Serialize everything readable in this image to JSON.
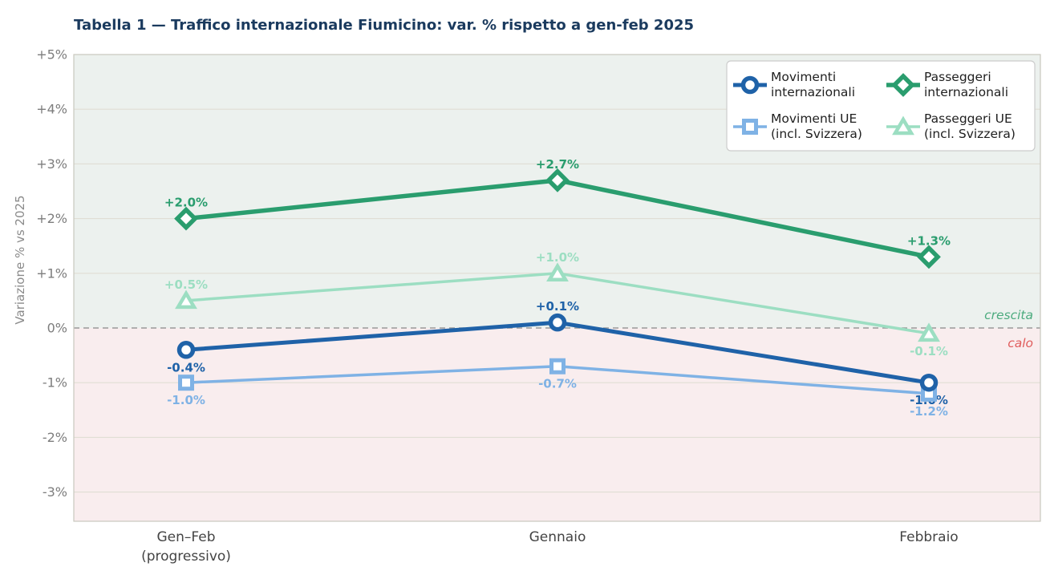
{
  "chart_data": {
    "type": "line",
    "title": "Tabella 1 — Traffico internazionale Fiumicino: var. % rispetto a gen-feb 2025",
    "ylabel": "Variazione % vs 2025",
    "categories": [
      [
        "Gen–Feb",
        "(progressivo)"
      ],
      [
        "Gennaio"
      ],
      [
        "Febbraio"
      ]
    ],
    "y_ticks": [
      {
        "value": 5,
        "label": "+5%"
      },
      {
        "value": 4,
        "label": "+4%"
      },
      {
        "value": 3,
        "label": "+3%"
      },
      {
        "value": 2,
        "label": "+2%"
      },
      {
        "value": 1,
        "label": "+1%"
      },
      {
        "value": 0,
        "label": "0%"
      },
      {
        "value": -1,
        "label": "-1%"
      },
      {
        "value": -2,
        "label": "-2%"
      },
      {
        "value": -3,
        "label": "-3%"
      }
    ],
    "ylim": [
      -3.5,
      5
    ],
    "series": [
      {
        "name": "Movimenti internazionali",
        "legend_label": [
          "Movimenti",
          "internazionali"
        ],
        "color": "#1f62a8",
        "marker": "circle",
        "line_width": 5,
        "values": [
          -0.4,
          0.1,
          -1.0
        ],
        "point_labels": [
          "-0.4%",
          "+0.1%",
          "-1.0%"
        ],
        "label_side": [
          "below",
          "above",
          "below"
        ]
      },
      {
        "name": "Movimenti UE (incl. Svizzera)",
        "legend_label": [
          "Movimenti UE",
          "(incl. Svizzera)"
        ],
        "color": "#7fb2e5",
        "marker": "square",
        "line_width": 3.5,
        "values": [
          -1.0,
          -0.7,
          -1.2
        ],
        "point_labels": [
          "-1.0%",
          "-0.7%",
          "-1.2%"
        ],
        "label_side": [
          "below",
          "below",
          "below"
        ]
      },
      {
        "name": "Passeggeri internazionali",
        "legend_label": [
          "Passeggeri",
          "internazionali"
        ],
        "color": "#2a9d6e",
        "marker": "diamond",
        "line_width": 5.5,
        "values": [
          2.0,
          2.7,
          1.3
        ],
        "point_labels": [
          "+2.0%",
          "+2.7%",
          "+1.3%"
        ],
        "label_side": [
          "above",
          "above",
          "above"
        ]
      },
      {
        "name": "Passeggeri UE (incl. Svizzera)",
        "legend_label": [
          "Passeggeri UE",
          "(incl. Svizzera)"
        ],
        "color": "#9cdec2",
        "marker": "triangle",
        "line_width": 3.5,
        "values": [
          0.5,
          1.0,
          -0.1
        ],
        "point_labels": [
          "+0.5%",
          "+1.0%",
          "-0.1%"
        ],
        "label_side": [
          "above",
          "above",
          "below"
        ]
      }
    ],
    "zero_line": {
      "style": "dashed",
      "color": "#999999"
    },
    "annotations": [
      {
        "text": "crescita",
        "color": "#4cab7e",
        "position": "above-zero-right"
      },
      {
        "text": "calo",
        "color": "#e05c5c",
        "position": "below-zero-right"
      }
    ],
    "regions": {
      "above_zero_color": "#ecf1ee",
      "below_zero_color": "#f9edee"
    },
    "legend": {
      "position": "top-right"
    },
    "grid": true,
    "colors": {
      "title": "#1a3a5e",
      "grid_line": "#e0ded4",
      "spine": "#c9c7be",
      "y_tick_label": "#7d7d7d",
      "x_tick_label": "#444444",
      "axis_label": "#8a8a8a",
      "legend_text": "#1f1f1f",
      "legend_border": "#cccccc"
    }
  }
}
